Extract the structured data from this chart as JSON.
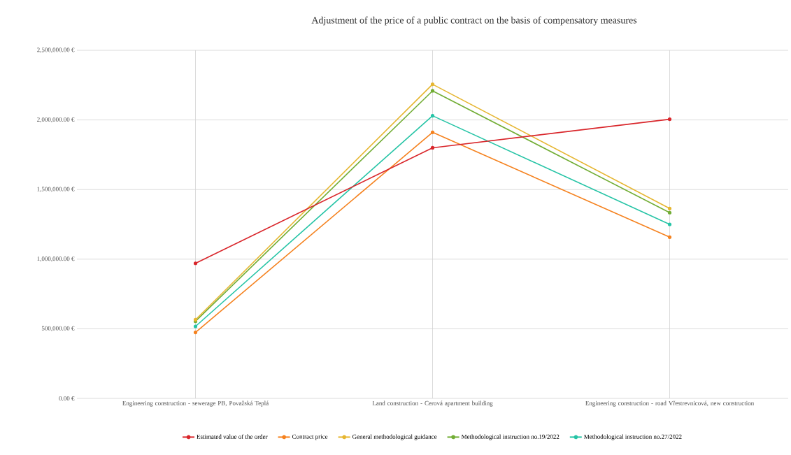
{
  "chart_data": {
    "type": "line",
    "title": "Adjustment of the price of a public contract on the basis of compensatory measures",
    "categories": [
      "Engineering construction - sewerage PB, Považská Teplá",
      "Land construction - Cerová apartment building",
      "Engineering construction - road Vřestrevnicová, new construction"
    ],
    "series": [
      {
        "name": "Estimated value of the order",
        "color": "#d9262b",
        "values": [
          970000,
          1800000,
          2005000
        ]
      },
      {
        "name": "Contract price",
        "color": "#f5821f",
        "values": [
          474000,
          1911000,
          1158000
        ]
      },
      {
        "name": "General methodological guidance",
        "color": "#e6b631",
        "values": [
          565000,
          2256000,
          1364000
        ]
      },
      {
        "name": "Methodological instruction no.19/2022",
        "color": "#72ad35",
        "values": [
          554000,
          2209000,
          1334000
        ]
      },
      {
        "name": "Methodological instruction no.27/2022",
        "color": "#26c4a6",
        "values": [
          517000,
          2030000,
          1250000
        ]
      }
    ],
    "ylim": [
      0,
      2500000
    ],
    "yticks": [
      {
        "value": 0,
        "label": "0.00 €"
      },
      {
        "value": 500000,
        "label": "500,000.00 €"
      },
      {
        "value": 1000000,
        "label": "1,000,000.00 €"
      },
      {
        "value": 1500000,
        "label": "1,500,000.00 €"
      },
      {
        "value": 2000000,
        "label": "2,000,000.00 €"
      },
      {
        "value": 2500000,
        "label": "2,500,000.00 €"
      }
    ],
    "grid": true,
    "legend": "bottom",
    "marker": "circle",
    "line_style": "solid"
  }
}
